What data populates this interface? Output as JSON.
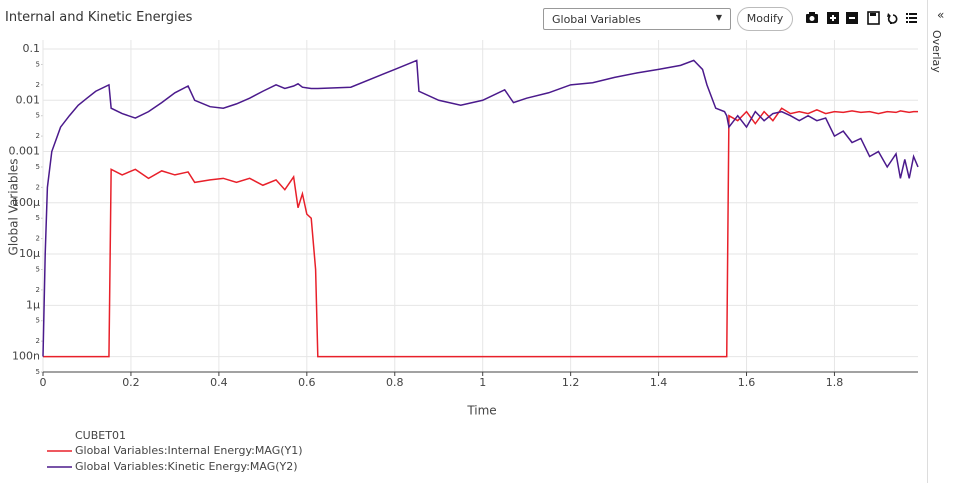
{
  "header": {
    "dropdown": "Global Variables",
    "button": "Modify",
    "sidebar": "Overlay"
  },
  "chart_data": {
    "type": "line",
    "title": "Internal and Kinetic Energies",
    "x_label": "Time",
    "y_label": "Global Variables",
    "legend_title": "CUBET01",
    "log_y": true,
    "grid": true,
    "x": [
      0,
      0.005,
      0.01,
      0.02,
      0.04,
      0.06,
      0.08,
      0.1,
      0.12,
      0.15,
      0.155,
      0.18,
      0.21,
      0.24,
      0.27,
      0.3,
      0.33,
      0.345,
      0.38,
      0.41,
      0.44,
      0.47,
      0.5,
      0.53,
      0.55,
      0.57,
      0.58,
      0.59,
      0.6,
      0.61,
      0.62,
      0.625,
      0.7,
      0.8,
      0.85,
      0.855,
      0.9,
      0.95,
      1.0,
      1.05,
      1.07,
      1.1,
      1.15,
      1.2,
      1.25,
      1.3,
      1.35,
      1.4,
      1.45,
      1.48,
      1.5,
      1.51,
      1.53,
      1.55,
      1.555,
      1.56,
      1.58,
      1.6,
      1.62,
      1.64,
      1.66,
      1.68,
      1.7,
      1.72,
      1.74,
      1.76,
      1.78,
      1.8,
      1.82,
      1.84,
      1.86,
      1.88,
      1.9,
      1.92,
      1.94,
      1.95,
      1.96,
      1.97,
      1.98,
      1.99
    ],
    "series": [
      {
        "name": "Global Variables:Internal Energy:MAG(Y1)",
        "color": "#e8202a",
        "values": [
          1e-07,
          1e-07,
          1e-07,
          1e-07,
          1e-07,
          1e-07,
          1e-07,
          1e-07,
          1e-07,
          1e-07,
          0.00045,
          0.00035,
          0.00045,
          0.0003,
          0.00042,
          0.00035,
          0.0004,
          0.00025,
          0.00028,
          0.0003,
          0.00025,
          0.0003,
          0.00022,
          0.00028,
          0.00018,
          0.00032,
          8e-05,
          0.00015,
          6e-05,
          5e-05,
          5e-06,
          1e-07,
          1e-07,
          1e-07,
          1e-07,
          1e-07,
          1e-07,
          1e-07,
          1e-07,
          1e-07,
          1e-07,
          1e-07,
          1e-07,
          1e-07,
          1e-07,
          1e-07,
          1e-07,
          1e-07,
          1e-07,
          1e-07,
          1e-07,
          1e-07,
          1e-07,
          1e-07,
          1e-07,
          0.005,
          0.004,
          0.006,
          0.0035,
          0.006,
          0.004,
          0.007,
          0.0055,
          0.006,
          0.0055,
          0.0065,
          0.0055,
          0.006,
          0.0058,
          0.0062,
          0.0058,
          0.006,
          0.0055,
          0.006,
          0.0058,
          0.0062,
          0.006,
          0.0058,
          0.006,
          0.006
        ]
      },
      {
        "name": "Global Variables:Kinetic Energy:MAG(Y2)",
        "color": "#4b1a8c",
        "values": [
          1e-07,
          1e-05,
          0.0002,
          0.001,
          0.003,
          0.005,
          0.008,
          0.011,
          0.015,
          0.02,
          0.007,
          0.0055,
          0.0045,
          0.006,
          0.009,
          0.014,
          0.019,
          0.01,
          0.0075,
          0.007,
          0.0085,
          0.011,
          0.015,
          0.02,
          0.017,
          0.019,
          0.021,
          0.018,
          0.0175,
          0.017,
          0.017,
          0.017,
          0.018,
          0.04,
          0.06,
          0.015,
          0.01,
          0.008,
          0.01,
          0.016,
          0.009,
          0.011,
          0.014,
          0.02,
          0.022,
          0.028,
          0.034,
          0.04,
          0.048,
          0.06,
          0.04,
          0.02,
          0.007,
          0.006,
          0.005,
          0.003,
          0.005,
          0.003,
          0.006,
          0.004,
          0.0055,
          0.006,
          0.005,
          0.004,
          0.005,
          0.004,
          0.0045,
          0.002,
          0.0025,
          0.0015,
          0.0018,
          0.0008,
          0.001,
          0.0005,
          0.0009,
          0.0003,
          0.0007,
          0.0003,
          0.0008,
          0.0005
        ]
      }
    ],
    "xlim": [
      0,
      1.99
    ],
    "xticks": [
      0,
      0.2,
      0.4,
      0.6,
      0.8,
      1,
      1.2,
      1.4,
      1.6,
      1.8
    ],
    "ylim": [
      5e-08,
      0.15
    ],
    "yticks": [
      0.1,
      {
        "value": 0.05,
        "label": "5"
      },
      {
        "value": 0.02,
        "label": "2"
      },
      0.01,
      {
        "value": 0.005,
        "label": "5"
      },
      {
        "value": 0.002,
        "label": "2"
      },
      0.001,
      {
        "value": 0.0005,
        "label": "5"
      },
      {
        "value": 0.0002,
        "label": "2"
      },
      {
        "value": 0.0001,
        "label": "100μ"
      },
      {
        "value": 5e-05,
        "label": "5"
      },
      {
        "value": 2e-05,
        "label": "2"
      },
      {
        "value": 1e-05,
        "label": "10μ"
      },
      {
        "value": 5e-06,
        "label": "5"
      },
      {
        "value": 2e-06,
        "label": "2"
      },
      {
        "value": 1e-06,
        "label": "1μ"
      },
      {
        "value": 5e-07,
        "label": "5"
      },
      {
        "value": 2e-07,
        "label": "2"
      },
      {
        "value": 1e-07,
        "label": "100n"
      },
      {
        "value": 5e-08,
        "label": "5"
      }
    ]
  }
}
